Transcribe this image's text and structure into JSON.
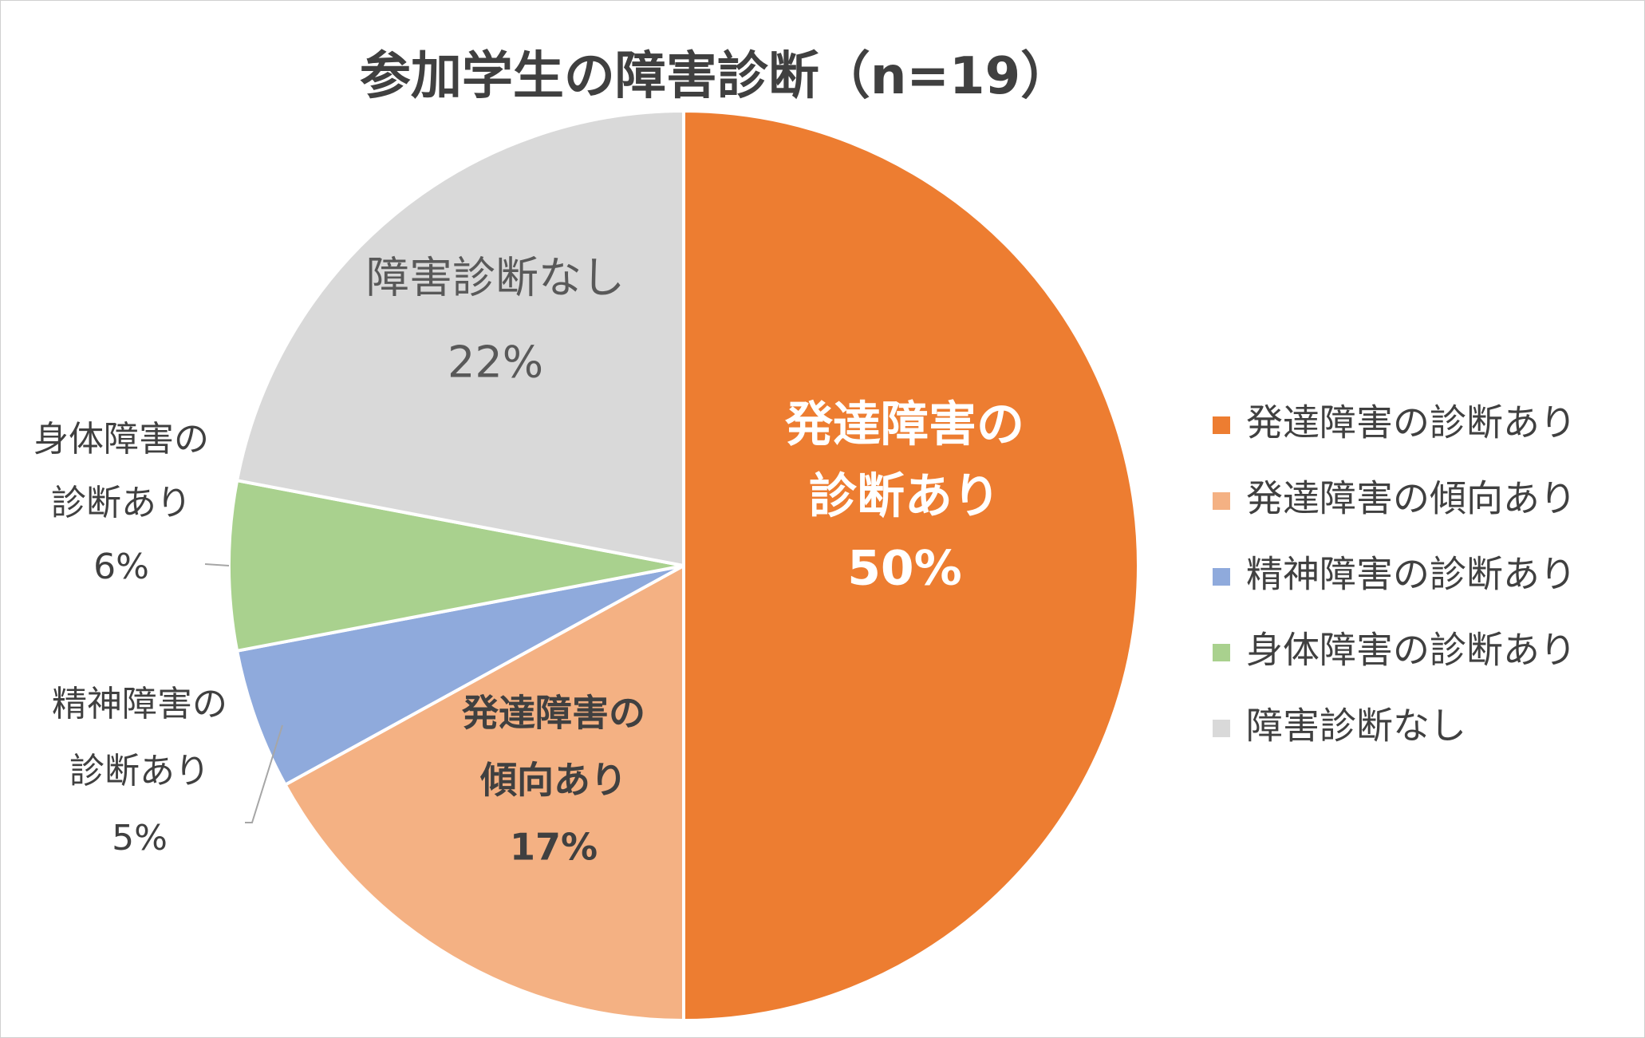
{
  "chart_data": {
    "type": "pie",
    "title": "参加学生の障害診断（n=19）",
    "series": [
      {
        "name": "",
        "slices": [
          {
            "category": "発達障害の診断あり",
            "label_lines": [
              "発達障害の",
              "診断あり"
            ],
            "value": 50,
            "value_label": "50%",
            "color": "#ED7D31"
          },
          {
            "category": "発達障害の傾向あり",
            "label_lines": [
              "発達障害の",
              "傾向あり"
            ],
            "value": 17,
            "value_label": "17%",
            "color": "#F4B183"
          },
          {
            "category": "精神障害の診断あり",
            "label_lines": [
              "精神障害の",
              "診断あり"
            ],
            "value": 5,
            "value_label": "5%",
            "color": "#8FAADC"
          },
          {
            "category": "身体障害の診断あり",
            "label_lines": [
              "身体障害の",
              "診断あり"
            ],
            "value": 6,
            "value_label": "6%",
            "color": "#A9D18E"
          },
          {
            "category": "障害診断なし",
            "label_lines": [
              "障害診断なし"
            ],
            "value": 22,
            "value_label": "22%",
            "color": "#D9D9D9"
          }
        ]
      }
    ],
    "start_angle_deg": 0,
    "direction": "clockwise",
    "legend": {
      "position": "right",
      "entries": [
        "発達障害の診断あり",
        "発達障害の傾向あり",
        "精神障害の診断あり",
        "身体障害の診断あり",
        "障害診断なし"
      ]
    }
  }
}
